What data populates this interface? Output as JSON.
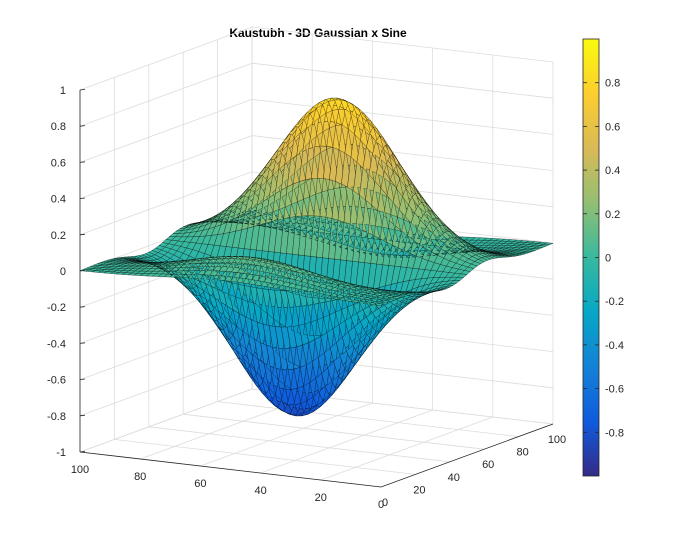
{
  "chart_data": {
    "type": "surface",
    "title": "Kaustubh - 3D Gaussian x Sine",
    "xlabel": "",
    "ylabel": "",
    "zlabel": "",
    "function": "z = exp(-((x-50)^2 + (y-50)^2)/800) * sin(pi*(x-50)/30) (approx.)",
    "xlim": [
      0,
      100
    ],
    "ylim": [
      0,
      100
    ],
    "zlim": [
      -1,
      1
    ],
    "z_extremes": {
      "max": 1.0,
      "min": -1.0
    },
    "x_ticks": [
      "0",
      "20",
      "40",
      "60",
      "80",
      "100"
    ],
    "y_ticks": [
      "100",
      "80",
      "60",
      "40",
      "20",
      "0"
    ],
    "z_ticks": [
      "1",
      "0.8",
      "0.6",
      "0.4",
      "0.2",
      "0",
      "-0.2",
      "-0.4",
      "-0.6",
      "-0.8",
      "-1"
    ],
    "colorbar": {
      "colormap": "parula",
      "range": [
        -1,
        1
      ],
      "ticks": [
        "0.8",
        "0.6",
        "0.4",
        "0.2",
        "0",
        "-0.2",
        "-0.4",
        "-0.6",
        "-0.8"
      ],
      "colors": [
        "#352a87",
        "#0f5cdd",
        "#1481d6",
        "#06a7c6",
        "#38b99e",
        "#92bf73",
        "#d9ba56",
        "#fcce2e",
        "#f9fb0e"
      ]
    },
    "grid": true,
    "mesh_edges": true
  }
}
